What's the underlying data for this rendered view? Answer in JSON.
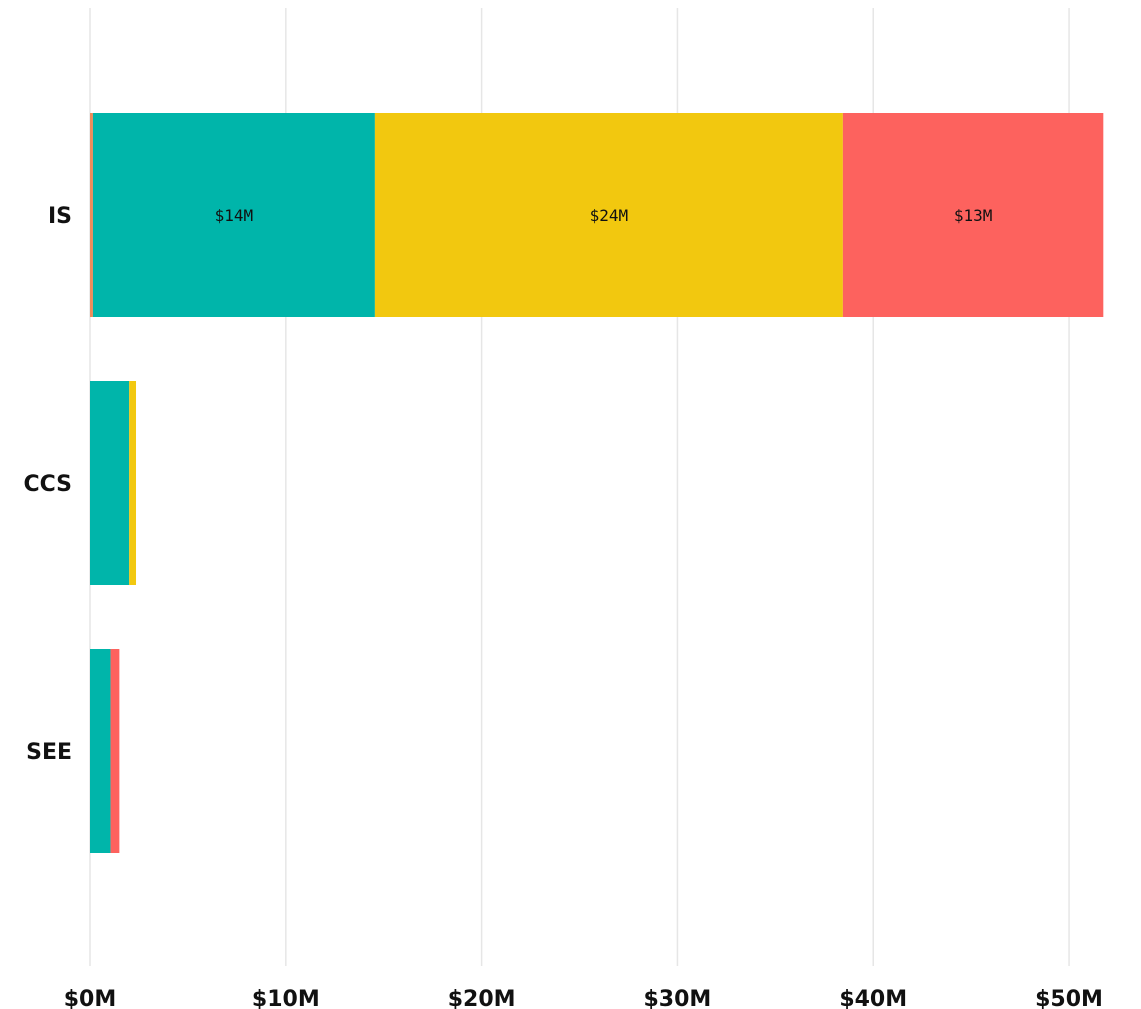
{
  "chart_data": {
    "type": "bar",
    "orientation": "horizontal",
    "stacked": true,
    "categories": [
      "IS",
      "CCS",
      "SEE"
    ],
    "series": [
      {
        "color": "#f08c5a",
        "values": [
          0.15,
          0,
          0
        ]
      },
      {
        "color": "#00b5aa",
        "values": [
          14.4,
          2.0,
          1.05
        ],
        "labels": [
          "$14M",
          "",
          ""
        ]
      },
      {
        "color": "#f2c80f",
        "values": [
          23.9,
          0.35,
          0
        ],
        "labels": [
          "$24M",
          "",
          ""
        ]
      },
      {
        "color": "#fd625e",
        "values": [
          13.3,
          0,
          0.45
        ],
        "labels": [
          "$13M",
          "",
          ""
        ]
      }
    ],
    "xlim": [
      0,
      52.5
    ],
    "x_ticks": [
      0,
      10,
      20,
      30,
      40,
      50
    ],
    "x_tick_labels": [
      "$0M",
      "$10M",
      "$20M",
      "$30M",
      "$40M",
      "$50M"
    ],
    "grid": true,
    "legend": "none",
    "title": "",
    "xlabel": "",
    "ylabel": ""
  }
}
